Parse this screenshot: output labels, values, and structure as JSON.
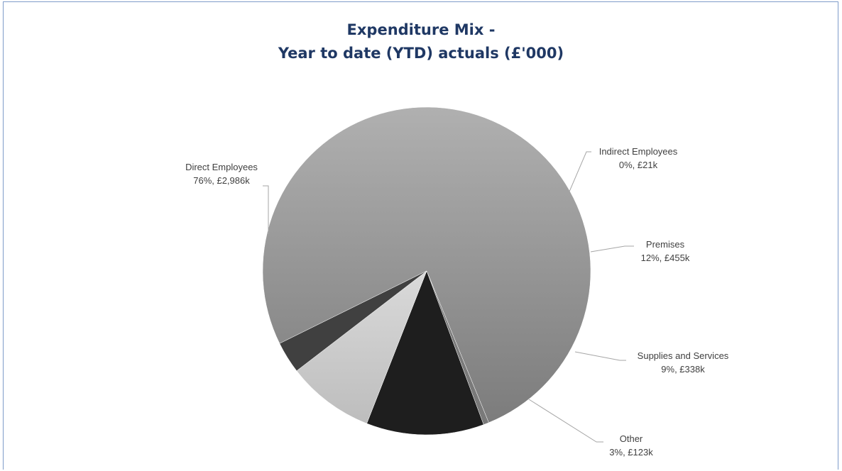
{
  "chart_data": {
    "type": "pie",
    "title": "Expenditure Mix -",
    "subtitle": "Year to date (YTD) actuals (£'000)",
    "slices": [
      {
        "name": "Direct Employees",
        "value": 2986,
        "pct_label": "76%, £2,986k",
        "color": "#a3a3a3"
      },
      {
        "name": "Indirect Employees",
        "value": 21,
        "pct_label": "0%, £21k",
        "color": "#7a7a7a"
      },
      {
        "name": "Premises",
        "value": 455,
        "pct_label": "12%, £455k",
        "color": "#1e1e1e"
      },
      {
        "name": "Supplies and Services",
        "value": 338,
        "pct_label": "9%, £338k",
        "color": "#cfcfcf"
      },
      {
        "name": "Other",
        "value": 123,
        "pct_label": "3%, £123k",
        "color": "#404040"
      }
    ],
    "legend": "none"
  }
}
